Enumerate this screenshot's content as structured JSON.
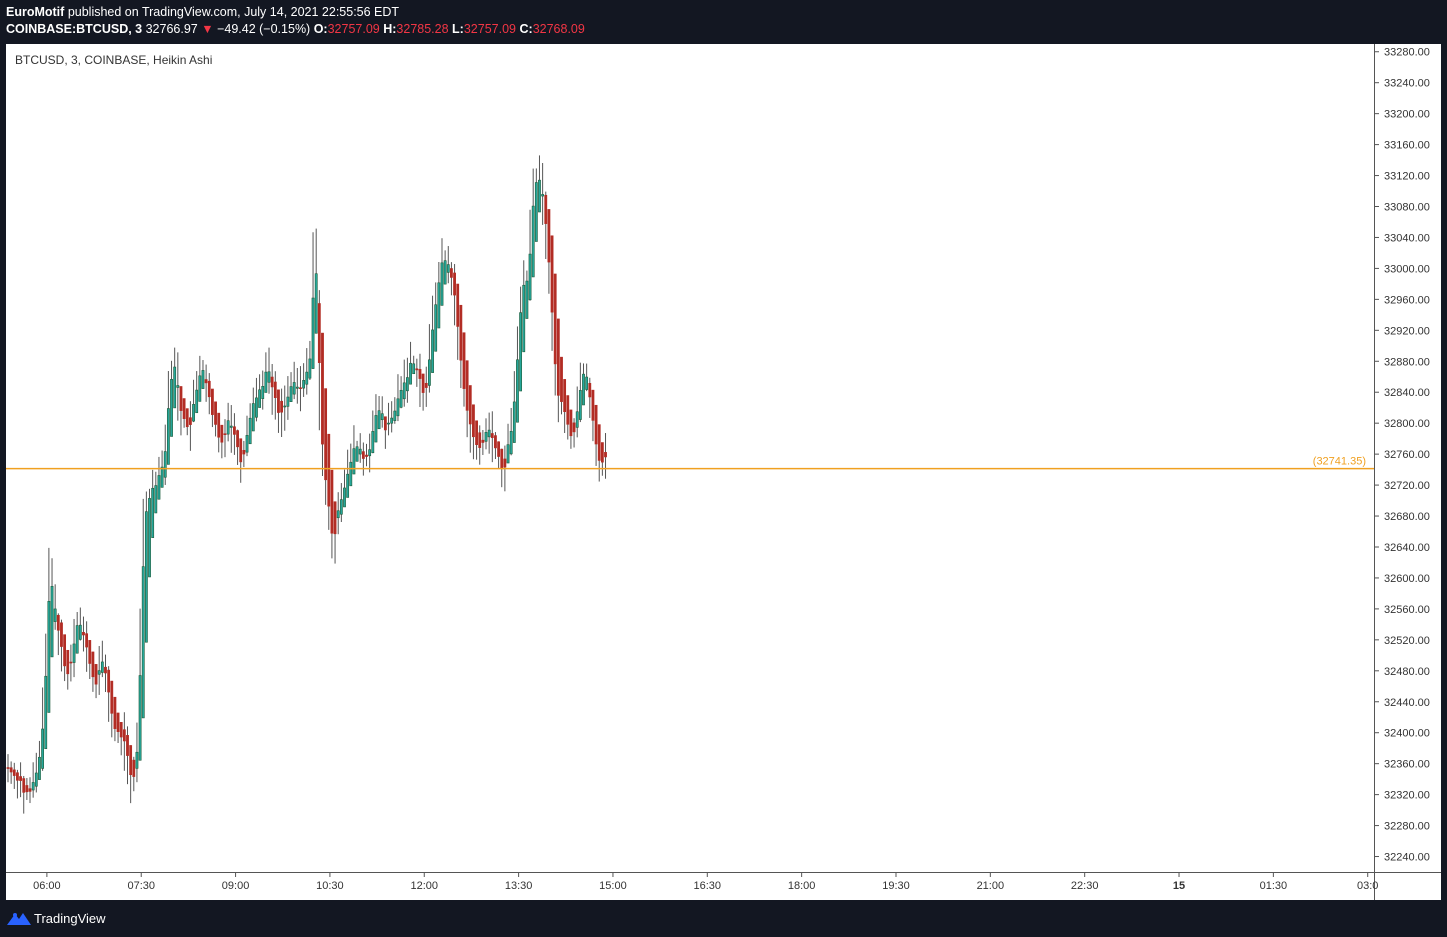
{
  "header": {
    "author": "EuroMotif",
    "published": "published on TradingView.com, July 14, 2021 22:55:56 EDT",
    "symbol": "COINBASE:BTCUSD, 3",
    "last_price": "32766.97",
    "change_arrow": "▼",
    "change": "−49.42 (−0.15%)",
    "o_label": "O:",
    "o_value": "32757.09",
    "h_label": "H:",
    "h_value": "32785.28",
    "l_label": "L:",
    "l_value": "32757.09",
    "c_label": "C:",
    "c_value": "32768.09"
  },
  "footer": {
    "brand": "TradingView",
    "logo_icon": "tradingview-logo-icon"
  },
  "chart_data": {
    "type": "candlestick",
    "title": "BTCUSD, 3, COINBASE, Heikin Ashi",
    "colors": {
      "up": "#26a69a",
      "up_dark": "#1e5c3a",
      "down": "#b22c24",
      "wick": "#555555",
      "line": "#f0a020",
      "axis_text": "#333333"
    },
    "ylim": [
      32220,
      33290
    ],
    "y_ticks": [
      32240,
      32280,
      32320,
      32360,
      32400,
      32440,
      32480,
      32520,
      32560,
      32600,
      32640,
      32680,
      32720,
      32760,
      32800,
      32840,
      32880,
      32920,
      32960,
      33000,
      33040,
      33080,
      33120,
      33160,
      33200,
      33240,
      33280
    ],
    "y_tick_labels": [
      "32240.00",
      "32280.00",
      "32320.00",
      "32360.00",
      "32400.00",
      "32440.00",
      "32480.00",
      "32520.00",
      "32560.00",
      "32600.00",
      "32640.00",
      "32680.00",
      "32720.00",
      "32760.00",
      "32800.00",
      "32840.00",
      "32880.00",
      "32920.00",
      "32960.00",
      "33000.00",
      "33040.00",
      "33080.00",
      "33120.00",
      "33160.00",
      "33200.00",
      "33240.00",
      "33280.00"
    ],
    "x_ticks": [
      "06:00",
      "07:30",
      "09:00",
      "10:30",
      "12:00",
      "13:30",
      "15:00",
      "16:30",
      "18:00",
      "19:30",
      "21:00",
      "22:30",
      "15",
      "01:30",
      "03:0"
    ],
    "x_tick_times": [
      360,
      450,
      540,
      630,
      720,
      810,
      900,
      990,
      1080,
      1170,
      1260,
      1350,
      1440,
      1530,
      1620
    ],
    "x_bold_ticks": [
      "15"
    ],
    "bar_interval_min": 3,
    "first_bar_time": 321,
    "horizontal_line": {
      "value": 32741.35,
      "label": "(32741.35)"
    },
    "closes": [
      32355,
      32345,
      32345,
      32342,
      32332,
      32320,
      32320,
      32325,
      32340,
      32355,
      32380,
      32430,
      32520,
      32610,
      32570,
      32545,
      32530,
      32490,
      32480,
      32480,
      32500,
      32540,
      32545,
      32530,
      32520,
      32500,
      32480,
      32460,
      32470,
      32490,
      32485,
      32470,
      32440,
      32410,
      32400,
      32395,
      32400,
      32380,
      32360,
      32330,
      32350,
      32400,
      32550,
      32680,
      32700,
      32710,
      32720,
      32730,
      32740,
      32745,
      32790,
      32840,
      32875,
      32870,
      32830,
      32810,
      32800,
      32790,
      32810,
      32830,
      32850,
      32875,
      32865,
      32840,
      32820,
      32800,
      32790,
      32770,
      32780,
      32800,
      32810,
      32790,
      32780,
      32760,
      32750,
      32770,
      32800,
      32820,
      32830,
      32840,
      32845,
      32860,
      32870,
      32860,
      32840,
      32820,
      32810,
      32820,
      32830,
      32840,
      32850,
      32850,
      32840,
      32850,
      32860,
      32870,
      32900,
      33030,
      32950,
      32800,
      32750,
      32700,
      32680,
      32640,
      32680,
      32700,
      32710,
      32720,
      32740,
      32760,
      32770,
      32770,
      32760,
      32750,
      32760,
      32780,
      32800,
      32810,
      32820,
      32800,
      32790,
      32800,
      32810,
      32820,
      32840,
      32850,
      32855,
      32870,
      32880,
      32875,
      32870,
      32850,
      32830,
      32860,
      32900,
      32940,
      32970,
      33000,
      33010,
      33010,
      33000,
      32980,
      32950,
      32900,
      32860,
      32830,
      32810,
      32790,
      32780,
      32760,
      32770,
      32780,
      32800,
      32790,
      32770,
      32760,
      32750,
      32730,
      32760,
      32780,
      32800,
      32850,
      32920,
      32960,
      32990,
      32980,
      33060,
      33100,
      33120,
      33110,
      33080,
      33040,
      32980,
      32900,
      32850,
      32830,
      32820,
      32810,
      32790,
      32780,
      32800,
      32830,
      32860,
      32870,
      32850,
      32820,
      32790,
      32760,
      32750,
      32750,
      32760
    ],
    "ohlc_note": "Heikin Ashi candles derived from closes"
  }
}
